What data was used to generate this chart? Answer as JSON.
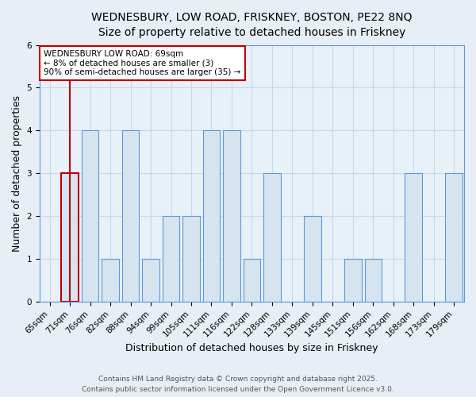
{
  "title_line1": "WEDNESBURY, LOW ROAD, FRISKNEY, BOSTON, PE22 8NQ",
  "title_line2": "Size of property relative to detached houses in Friskney",
  "xlabel": "Distribution of detached houses by size in Friskney",
  "ylabel": "Number of detached properties",
  "categories": [
    "65sqm",
    "71sqm",
    "76sqm",
    "82sqm",
    "88sqm",
    "94sqm",
    "99sqm",
    "105sqm",
    "111sqm",
    "116sqm",
    "122sqm",
    "128sqm",
    "133sqm",
    "139sqm",
    "145sqm",
    "151sqm",
    "156sqm",
    "162sqm",
    "168sqm",
    "173sqm",
    "179sqm"
  ],
  "values": [
    0,
    3,
    4,
    1,
    4,
    1,
    2,
    2,
    4,
    4,
    1,
    3,
    0,
    2,
    0,
    1,
    1,
    0,
    3,
    0,
    3
  ],
  "bar_color": "#d6e4f0",
  "bar_edge_color": "#5b9bd5",
  "highlight_bar_index": 1,
  "highlight_edge_color": "#c00000",
  "vline_x": 1,
  "vline_color": "#c00000",
  "ylim": [
    0,
    6
  ],
  "yticks": [
    0,
    1,
    2,
    3,
    4,
    5,
    6
  ],
  "annotation_title": "WEDNESBURY LOW ROAD: 69sqm",
  "annotation_line1": "← 8% of detached houses are smaller (3)",
  "annotation_line2": "90% of semi-detached houses are larger (35) →",
  "footnote_line1": "Contains HM Land Registry data © Crown copyright and database right 2025.",
  "footnote_line2": "Contains public sector information licensed under the Open Government Licence v3.0.",
  "background_color": "#e8eef5",
  "plot_bg_color": "#e8f0f8",
  "grid_color": "#c8d8e8",
  "title_fontsize": 10,
  "subtitle_fontsize": 9.5,
  "axis_label_fontsize": 9,
  "tick_fontsize": 7.5,
  "annotation_fontsize": 7.5,
  "footnote_fontsize": 6.5
}
